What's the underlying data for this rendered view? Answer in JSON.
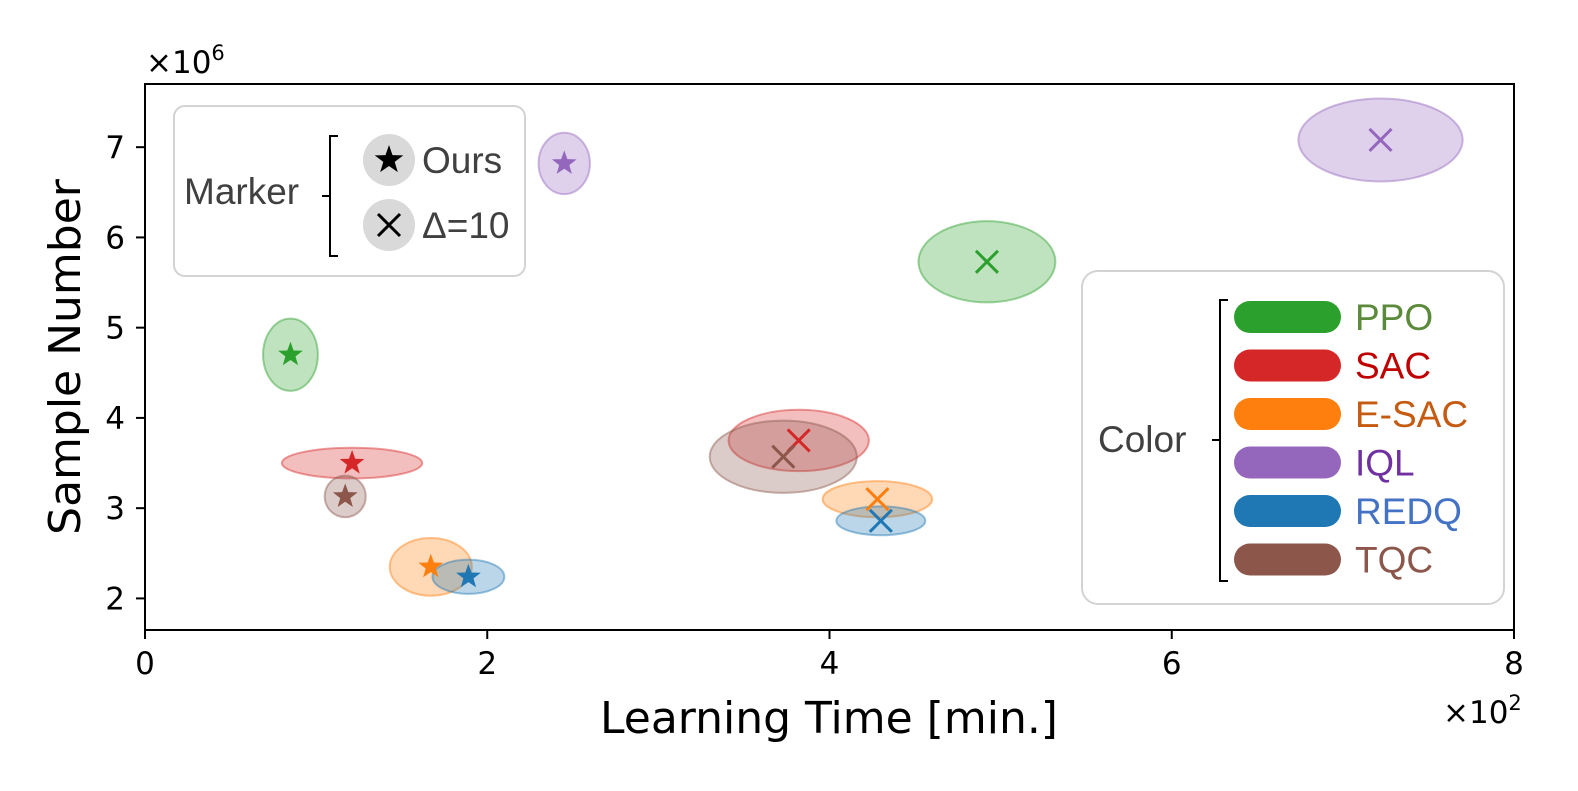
{
  "chart_data": {
    "type": "scatter",
    "xlabel": "Learning Time [min.]",
    "ylabel": "Sample Number",
    "x_multiplier": "×10",
    "x_multiplier_exp": "2",
    "y_multiplier": "×10",
    "y_multiplier_exp": "6",
    "xlim": [
      0,
      8
    ],
    "ylim": [
      1.65,
      7.7
    ],
    "x_ticks": [
      0,
      2,
      4,
      6,
      8
    ],
    "x_tick_labels": [
      "0",
      "2",
      "4",
      "6",
      "8"
    ],
    "y_ticks": [
      2,
      3,
      4,
      5,
      6,
      7
    ],
    "y_tick_labels": [
      "2",
      "3",
      "4",
      "5",
      "6",
      "7"
    ],
    "grid": false,
    "series": [
      {
        "name": "PPO",
        "color": "#2ca02c",
        "label_color": "#5a8a3a",
        "ours": {
          "x": 0.85,
          "y": 4.7,
          "x_spread": 0.16,
          "y_spread": 0.4
        },
        "delta": {
          "x": 4.92,
          "y": 5.73,
          "x_spread": 0.4,
          "y_spread": 0.45
        }
      },
      {
        "name": "SAC",
        "color": "#d62728",
        "label_color": "#c00000",
        "ours": {
          "x": 1.21,
          "y": 3.5,
          "x_spread": 0.41,
          "y_spread": 0.17
        },
        "delta": {
          "x": 3.82,
          "y": 3.75,
          "x_spread": 0.41,
          "y_spread": 0.34
        }
      },
      {
        "name": "E-SAC",
        "color": "#ff7f0e",
        "label_color": "#c55a11",
        "ours": {
          "x": 1.67,
          "y": 2.35,
          "x_spread": 0.24,
          "y_spread": 0.32
        },
        "delta": {
          "x": 4.28,
          "y": 3.1,
          "x_spread": 0.32,
          "y_spread": 0.2
        }
      },
      {
        "name": "IQL",
        "color": "#9467bd",
        "label_color": "#7030a0",
        "ours": {
          "x": 2.45,
          "y": 6.82,
          "x_spread": 0.15,
          "y_spread": 0.34
        },
        "delta": {
          "x": 7.22,
          "y": 7.08,
          "x_spread": 0.48,
          "y_spread": 0.46
        }
      },
      {
        "name": "REDQ",
        "color": "#1f77b4",
        "label_color": "#4472c4",
        "ours": {
          "x": 1.89,
          "y": 2.24,
          "x_spread": 0.21,
          "y_spread": 0.19
        },
        "delta": {
          "x": 4.3,
          "y": 2.86,
          "x_spread": 0.26,
          "y_spread": 0.16
        }
      },
      {
        "name": "TQC",
        "color": "#8c564b",
        "label_color": "#8c564b",
        "ours": {
          "x": 1.17,
          "y": 3.13,
          "x_spread": 0.12,
          "y_spread": 0.23
        },
        "delta": {
          "x": 3.73,
          "y": 3.57,
          "x_spread": 0.43,
          "y_spread": 0.4
        }
      }
    ],
    "marker_legend": {
      "title": "Marker",
      "placement": "top-left",
      "items": [
        {
          "symbol": "star",
          "label": "Ours"
        },
        {
          "symbol": "x",
          "label": "Δ=10"
        }
      ]
    },
    "color_legend": {
      "title": "Color",
      "placement": "right",
      "items": [
        "PPO",
        "SAC",
        "E-SAC",
        "IQL",
        "REDQ",
        "TQC"
      ]
    }
  }
}
